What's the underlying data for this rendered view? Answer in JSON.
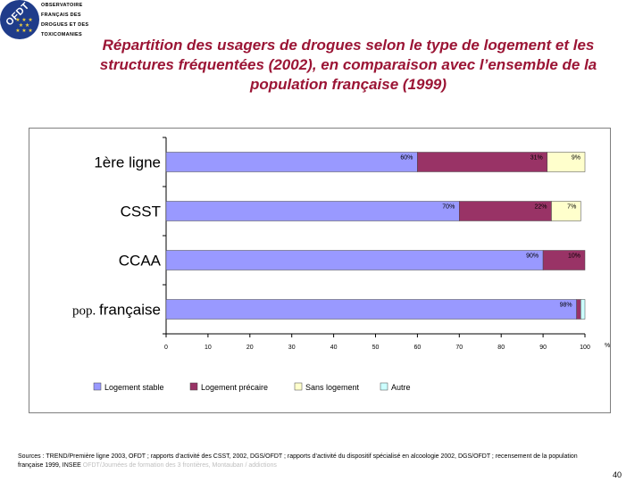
{
  "logo": {
    "text": "OFDT",
    "lines": [
      "OBSERVATOIRE",
      "FRANÇAIS DES",
      "DROGUES ET DES",
      "TOXICOMANIES"
    ]
  },
  "title": "Répartition des usagers de drogues selon le type de logement et les structures fréquentées (2002), en comparaison avec l’ensemble de la population française (1999)",
  "chart_data": {
    "type": "bar",
    "orientation": "horizontal",
    "stacked": true,
    "categories": [
      "1ère ligne",
      "CSST",
      "CCAA",
      "pop. française"
    ],
    "series": [
      {
        "name": "Logement stable",
        "color": "#9999ff",
        "values": [
          60,
          70,
          90,
          98
        ]
      },
      {
        "name": "Logement précaire",
        "color": "#993366",
        "values": [
          31,
          22,
          10,
          1
        ]
      },
      {
        "name": "Sans logement",
        "color": "#ffffcc",
        "values": [
          9,
          7,
          0,
          0
        ]
      },
      {
        "name": "Autre",
        "color": "#ccffff",
        "values": [
          0,
          0,
          0,
          1
        ]
      }
    ],
    "data_labels": [
      [
        "60%",
        "31%",
        "9%",
        ""
      ],
      [
        "70%",
        "22%",
        "7%",
        ""
      ],
      [
        "90%",
        "10%",
        "",
        ""
      ],
      [
        "98%",
        "",
        "",
        ""
      ]
    ],
    "xlim": [
      0,
      100
    ],
    "xticks": [
      "0",
      "10",
      "20",
      "30",
      "40",
      "50",
      "60",
      "70",
      "80",
      "90",
      "100"
    ],
    "xunit": "%",
    "legend_position": "bottom"
  },
  "sources": {
    "text": "Sources : TREND/Première ligne 2003, OFDT ; rapports d’activité des CSST, 2002, DGS/OFDT ; rapports d’activité du dispositif spécialisé en alcoologie 2002, DGS/OFDT ; recensement de la population française 1999, INSEE",
    "footer": "OFDT/Journées de formation des 3 frontières, Montauban / addictions"
  },
  "page_number": "40"
}
